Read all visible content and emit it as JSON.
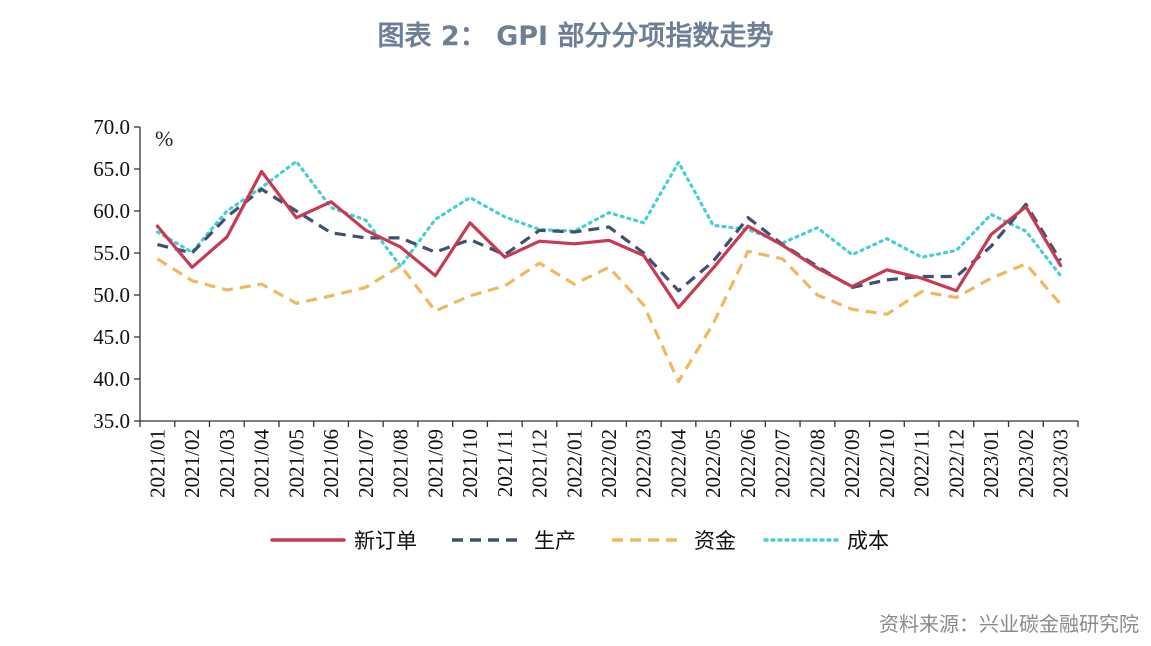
{
  "title": "图表 2：  GPI 部分分项指数走势",
  "source": "资料来源：兴业碳金融研究院",
  "chart_data": {
    "type": "line",
    "unit": "%",
    "ylim": [
      35.0,
      70.0
    ],
    "yticks": [
      "35.0",
      "40.0",
      "45.0",
      "50.0",
      "55.0",
      "60.0",
      "65.0",
      "70.0"
    ],
    "categories": [
      "2021/01",
      "2021/02",
      "2021/03",
      "2021/04",
      "2021/05",
      "2021/06",
      "2021/07",
      "2021/08",
      "2021/09",
      "2021/10",
      "2021/11",
      "2021/12",
      "2022/01",
      "2022/02",
      "2022/03",
      "2022/04",
      "2022/05",
      "2022/06",
      "2022/07",
      "2022/08",
      "2022/09",
      "2022/10",
      "2022/11",
      "2022/12",
      "2023/01",
      "2023/02",
      "2023/03"
    ],
    "series": [
      {
        "name": "新订单",
        "color": "#c63a52",
        "style": "solid",
        "values": [
          58.2,
          53.3,
          56.9,
          64.7,
          59.2,
          61.1,
          57.7,
          55.7,
          52.3,
          58.6,
          54.5,
          56.4,
          56.1,
          56.5,
          54.7,
          48.5,
          53.2,
          58.2,
          55.9,
          53.2,
          51.0,
          53.0,
          52.0,
          50.5,
          57.2,
          60.5,
          53.5
        ]
      },
      {
        "name": "生产",
        "color": "#3f5170",
        "style": "dashed",
        "values": [
          56.0,
          55.0,
          59.3,
          62.6,
          60.0,
          57.4,
          56.8,
          56.8,
          55.1,
          56.6,
          54.8,
          57.7,
          57.5,
          58.1,
          55.0,
          50.5,
          54.0,
          59.2,
          56.0,
          53.4,
          50.9,
          51.8,
          52.2,
          52.2,
          55.8,
          60.8,
          54.1
        ]
      },
      {
        "name": "资金",
        "color": "#f2b85f",
        "style": "dashed",
        "values": [
          54.3,
          51.7,
          50.6,
          51.3,
          49.0,
          49.9,
          50.9,
          53.5,
          48.1,
          49.9,
          51.1,
          53.8,
          51.3,
          53.3,
          48.8,
          39.7,
          46.6,
          55.2,
          54.3,
          50.0,
          48.3,
          47.7,
          50.4,
          49.7,
          52.0,
          53.7,
          48.9
        ]
      },
      {
        "name": "成本",
        "color": "#46d0d0",
        "style": "dotted",
        "values": [
          57.5,
          55.1,
          60.0,
          62.8,
          65.9,
          60.4,
          58.9,
          53.4,
          59.0,
          61.6,
          59.3,
          57.8,
          57.6,
          59.8,
          58.6,
          65.8,
          58.3,
          57.8,
          56.2,
          58.0,
          54.8,
          56.7,
          54.5,
          55.3,
          59.6,
          57.6,
          52.3
        ]
      }
    ]
  }
}
